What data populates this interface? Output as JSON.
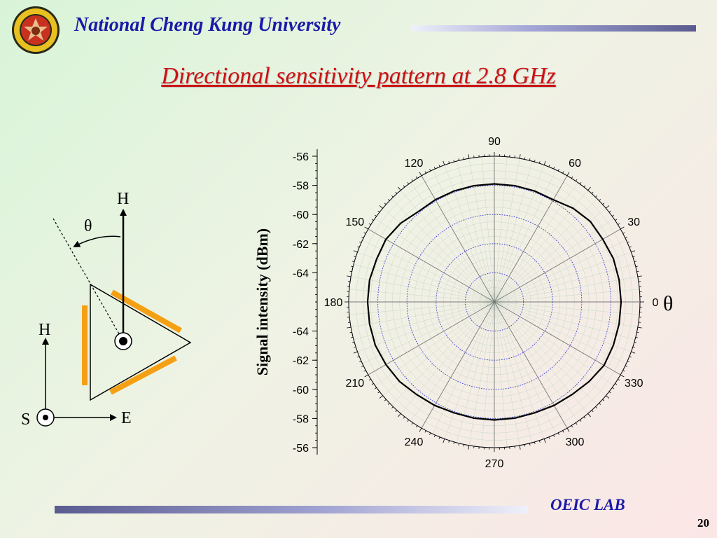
{
  "header": {
    "university": "National Cheng Kung University",
    "slide_title": "Directional sensitivity pattern at 2.8 GHz"
  },
  "footer": {
    "lab": "OEIC LAB",
    "page_number": "20"
  },
  "diagram": {
    "label_h_top": "H",
    "label_theta": "θ",
    "label_h_axis": "H",
    "label_e_axis": "E",
    "label_s_axis": "S"
  },
  "colors": {
    "header_text": "#1a1aa8",
    "title_text": "#cc1111",
    "sensor_bars": "#f5a014",
    "trace": "#000000",
    "dotted_rings": "#3030dd"
  },
  "chart_data": {
    "type": "polar-line",
    "ylabel": "Signal intensity (dBm)",
    "theta_label": "θ",
    "angle_ticks": [
      "0",
      "30",
      "60",
      "90",
      "120",
      "150",
      "180",
      "210",
      "240",
      "270",
      "300",
      "330"
    ],
    "r_axis": {
      "range": [
        -66,
        -56
      ],
      "ticks_upper": [
        "-56",
        "-58",
        "-60",
        "-62",
        "-64"
      ],
      "ticks_lower": [
        "-64",
        "-62",
        "-60",
        "-58",
        "-56"
      ]
    },
    "series": [
      {
        "theta": [
          0,
          10,
          20,
          30,
          40,
          50,
          60,
          70,
          80,
          90,
          100,
          110,
          120,
          130,
          140,
          150,
          160,
          170,
          180,
          190,
          200,
          210,
          220,
          230,
          240,
          250,
          260,
          270,
          280,
          290,
          300,
          310,
          320,
          330,
          340,
          350
        ],
        "r": [
          -57.3,
          -57.3,
          -57.3,
          -57.4,
          -57.4,
          -57.6,
          -57.9,
          -57.9,
          -57.9,
          -57.9,
          -57.9,
          -57.9,
          -57.9,
          -57.9,
          -57.6,
          -57.4,
          -57.4,
          -57.3,
          -57.3,
          -57.3,
          -57.3,
          -57.4,
          -57.5,
          -57.7,
          -57.8,
          -57.9,
          -57.9,
          -57.9,
          -57.9,
          -57.9,
          -57.8,
          -57.7,
          -57.5,
          -57.3,
          -57.3,
          -57.3
        ]
      }
    ]
  }
}
